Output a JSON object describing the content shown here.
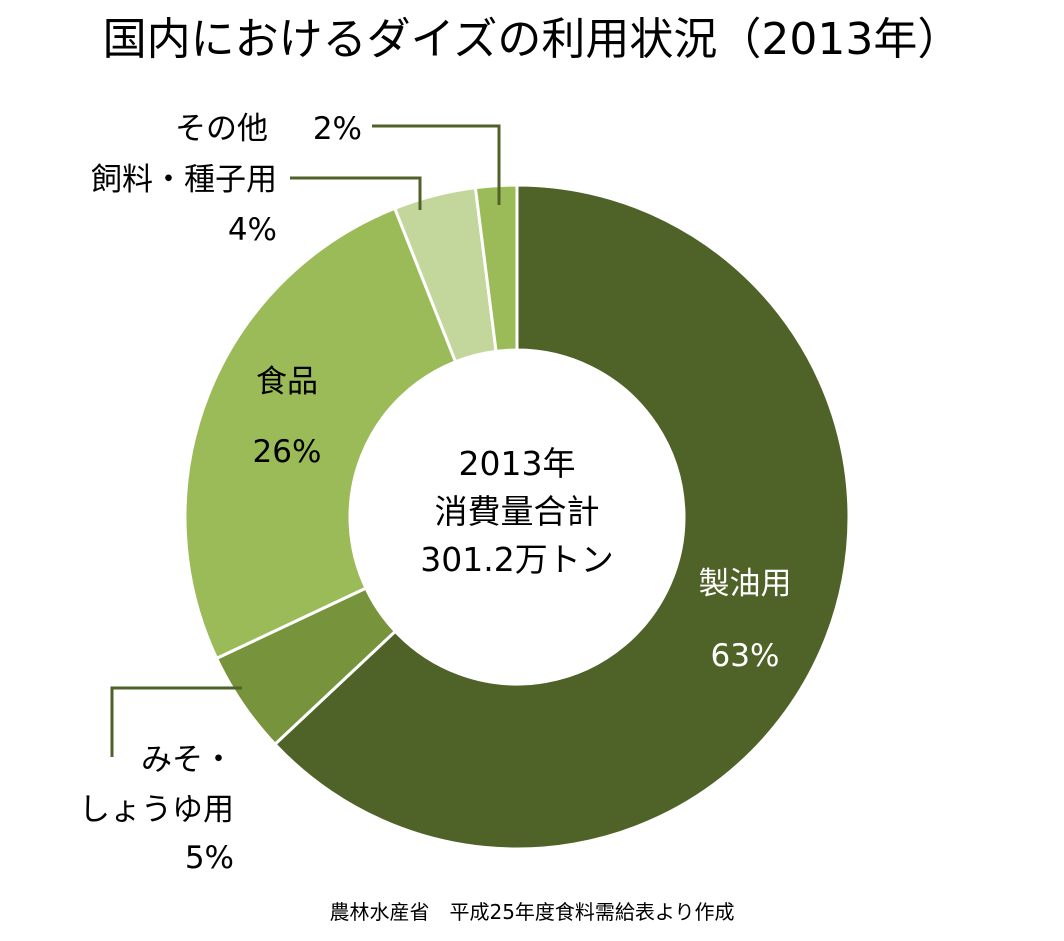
{
  "chart_data": {
    "type": "pie",
    "donut": true,
    "title": "国内におけるダイズの利用状況（2013年）",
    "center_text": [
      "2013年",
      "消費量合計",
      "301.2万トン"
    ],
    "source": "農林水産省　平成25年度食料需給表より作成",
    "slices": [
      {
        "name": "製油用",
        "value": 63,
        "label": "63%",
        "color": "#4f6228"
      },
      {
        "name": "みそ・しょうゆ用",
        "label_lines": [
          "みそ・",
          "しょうゆ用"
        ],
        "value": 5,
        "label": "5%",
        "color": "#77933c"
      },
      {
        "name": "食品",
        "value": 26,
        "label": "26%",
        "color": "#9bbb59"
      },
      {
        "name": "飼料・種子用",
        "value": 4,
        "label": "4%",
        "color": "#c3d69b"
      },
      {
        "name": "その他",
        "value": 2,
        "label": "2%",
        "color": "#9bbb59"
      }
    ],
    "leader_color": "#4f6228"
  }
}
